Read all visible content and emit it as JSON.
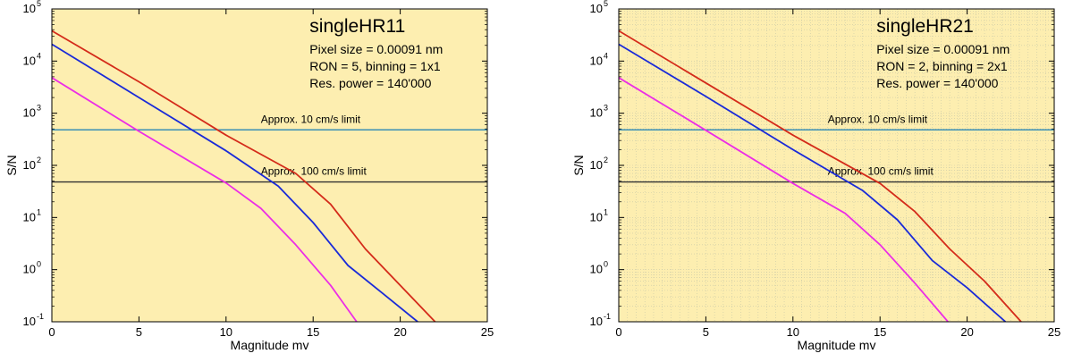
{
  "colors": {
    "background": "#fdeeb0",
    "red_series": "#d42b1a",
    "blue_series": "#1a2ad8",
    "magenta_series": "#ec2de6",
    "limit_10": "#3a8fb5",
    "limit_100": "#333333",
    "minor_grid": "#c8c8a8"
  },
  "chart_data": [
    {
      "type": "line",
      "title": "singleHR11",
      "info_lines": [
        "Pixel size = 0.00091 nm",
        "RON = 5, binning = 1x1",
        "Res. power = 140'000"
      ],
      "xlabel": "Magnitude mv",
      "ylabel": "S/N",
      "xlim": [
        0,
        25
      ],
      "ylim": [
        0.1,
        100000
      ],
      "y_scale": "log",
      "x_ticks": [
        "0",
        "5",
        "10",
        "15",
        "20",
        "25"
      ],
      "y_ticks": [
        {
          "base": "10",
          "exp": "-1"
        },
        {
          "base": "10",
          "exp": "0"
        },
        {
          "base": "10",
          "exp": "1"
        },
        {
          "base": "10",
          "exp": "2"
        },
        {
          "base": "10",
          "exp": "3"
        },
        {
          "base": "10",
          "exp": "4"
        },
        {
          "base": "10",
          "exp": "5"
        }
      ],
      "grid": false,
      "hlines": [
        {
          "label": "Approx. 10 cm/s limit",
          "y": 480,
          "color": "limit_10"
        },
        {
          "label": "Approx. 100 cm/s limit",
          "y": 48,
          "color": "limit_100"
        }
      ],
      "series": [
        {
          "color": "red_series",
          "x": [
            0,
            5,
            10,
            14,
            16,
            18,
            20,
            22
          ],
          "y": [
            38000,
            4000,
            380,
            70,
            18,
            2.5,
            0.5,
            0.1
          ]
        },
        {
          "color": "blue_series",
          "x": [
            0,
            5,
            10,
            13,
            15,
            17,
            19,
            21
          ],
          "y": [
            21000,
            2000,
            190,
            40,
            8,
            1.2,
            0.35,
            0.1
          ]
        },
        {
          "color": "magenta_series",
          "x": [
            0,
            5,
            10,
            12,
            14,
            16,
            17.5
          ],
          "y": [
            4800,
            450,
            46,
            15,
            3,
            0.5,
            0.1
          ]
        }
      ]
    },
    {
      "type": "line",
      "title": "singleHR21",
      "info_lines": [
        "Pixel size = 0.00091 nm",
        "RON = 2, binning = 2x1",
        "Res. power = 140'000"
      ],
      "xlabel": "Magnitude mv",
      "ylabel": "S/N",
      "xlim": [
        0,
        25
      ],
      "ylim": [
        0.1,
        100000
      ],
      "y_scale": "log",
      "x_ticks": [
        "0",
        "5",
        "10",
        "15",
        "20",
        "25"
      ],
      "y_ticks": [
        {
          "base": "10",
          "exp": "-1"
        },
        {
          "base": "10",
          "exp": "0"
        },
        {
          "base": "10",
          "exp": "1"
        },
        {
          "base": "10",
          "exp": "2"
        },
        {
          "base": "10",
          "exp": "3"
        },
        {
          "base": "10",
          "exp": "4"
        },
        {
          "base": "10",
          "exp": "5"
        }
      ],
      "grid": true,
      "hlines": [
        {
          "label": "Approx. 10 cm/s limit",
          "y": 480,
          "color": "limit_10"
        },
        {
          "label": "Approx. 100 cm/s limit",
          "y": 48,
          "color": "limit_100"
        }
      ],
      "series": [
        {
          "color": "red_series",
          "x": [
            0,
            5,
            10,
            15,
            17,
            19,
            21,
            23.1
          ],
          "y": [
            38000,
            3800,
            380,
            45,
            13,
            2.5,
            0.6,
            0.1
          ]
        },
        {
          "color": "blue_series",
          "x": [
            0,
            5,
            10,
            14,
            16,
            18,
            20,
            22.2
          ],
          "y": [
            21000,
            2100,
            200,
            33,
            9,
            1.5,
            0.45,
            0.1
          ]
        },
        {
          "color": "magenta_series",
          "x": [
            0,
            5,
            10,
            13,
            15,
            17,
            18.9
          ],
          "y": [
            4800,
            470,
            45,
            12,
            3,
            0.55,
            0.1
          ]
        }
      ]
    }
  ]
}
